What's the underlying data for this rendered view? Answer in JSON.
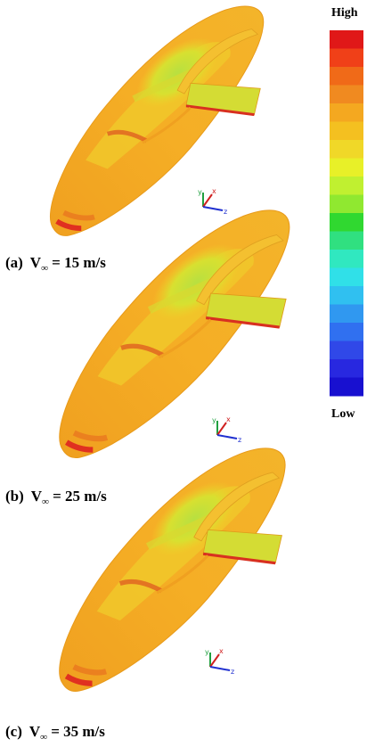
{
  "legend": {
    "high": "High",
    "low": "Low"
  },
  "panels": [
    {
      "tag": "(a)",
      "symbol": "V",
      "subscript": "∞",
      "equation": "= 15 m/s",
      "axes": {
        "x": "x",
        "y": "y",
        "z": "z"
      }
    },
    {
      "tag": "(b)",
      "symbol": "V",
      "subscript": "∞",
      "equation": "= 25 m/s",
      "axes": {
        "x": "x",
        "y": "y",
        "z": "z"
      }
    },
    {
      "tag": "(c)",
      "symbol": "V",
      "subscript": "∞",
      "equation": "= 35 m/s",
      "axes": {
        "x": "x",
        "y": "y",
        "z": "z"
      }
    }
  ]
}
